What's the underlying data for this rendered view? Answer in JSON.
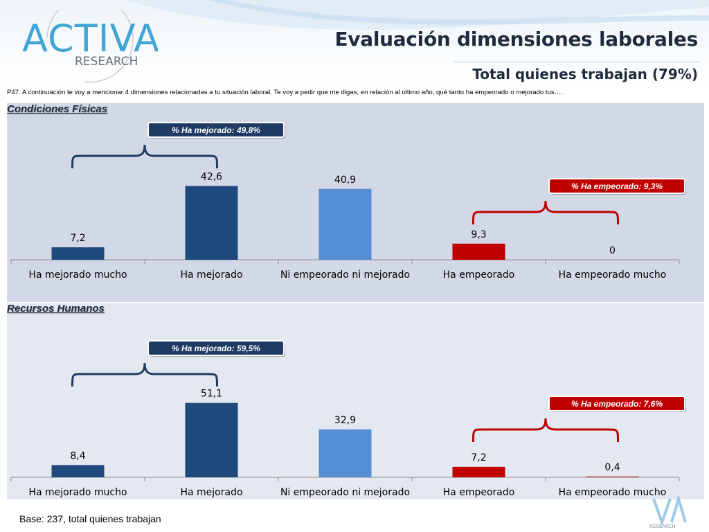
{
  "header": {
    "title": "Evaluación dimensiones laborales",
    "subtitle": "Total quienes trabajan (79%)",
    "logo_text": "ACTIVA",
    "logo_subtext": "RESEARCH"
  },
  "question": "P47. A continuación te voy a mencionar 4 dimensiones relacionadas a tu situación laboral. Te voy a pedir que me digas, en relación al último año, qué tanto ha empeorado o mejorado tus….",
  "footer": {
    "base_note": "Base: 237, total quienes trabajan",
    "corner_logo_text": "RESEARCH"
  },
  "colors": {
    "dark_blue": "#1f497d",
    "light_blue": "#558ed5",
    "red": "#c00000",
    "bracket_blue": "#1f3b64",
    "bracket_red": "#c00000"
  },
  "chart_data": [
    {
      "type": "bar",
      "title": "Condiciones Físicas",
      "categories": [
        "Ha mejorado mucho",
        "Ha mejorado",
        "Ni empeorado ni mejorado",
        "Ha empeorado",
        "Ha empeorado mucho"
      ],
      "values": [
        7.2,
        42.6,
        40.9,
        9.3,
        0
      ],
      "value_labels": [
        "7,2",
        "42,6",
        "40,9",
        "9,3",
        "0"
      ],
      "bar_colors": [
        "#1f497d",
        "#1f497d",
        "#558ed5",
        "#c00000",
        "#c00000"
      ],
      "ylim": [
        0,
        50
      ],
      "grid": false,
      "annotations": [
        {
          "text": "% Ha mejorado:  49,8%",
          "color": "#1f3b64",
          "spans": [
            0,
            1
          ]
        },
        {
          "text": "% Ha empeorado:  9,3%",
          "color": "#c00000",
          "spans": [
            3,
            4
          ]
        }
      ]
    },
    {
      "type": "bar",
      "title": "Recursos Humanos",
      "categories": [
        "Ha mejorado mucho",
        "Ha mejorado",
        "Ni empeorado ni mejorado",
        "Ha empeorado",
        "Ha empeorado mucho"
      ],
      "values": [
        8.4,
        51.1,
        32.9,
        7.2,
        0.4
      ],
      "value_labels": [
        "8,4",
        "51,1",
        "32,9",
        "7,2",
        "0,4"
      ],
      "bar_colors": [
        "#1f497d",
        "#1f497d",
        "#558ed5",
        "#c00000",
        "#c00000"
      ],
      "ylim": [
        0,
        57
      ],
      "grid": false,
      "annotations": [
        {
          "text": "% Ha mejorado:  59,5%",
          "color": "#1f3b64",
          "spans": [
            0,
            1
          ]
        },
        {
          "text": "% Ha empeorado:  7,6%",
          "color": "#c00000",
          "spans": [
            3,
            4
          ]
        }
      ]
    }
  ]
}
